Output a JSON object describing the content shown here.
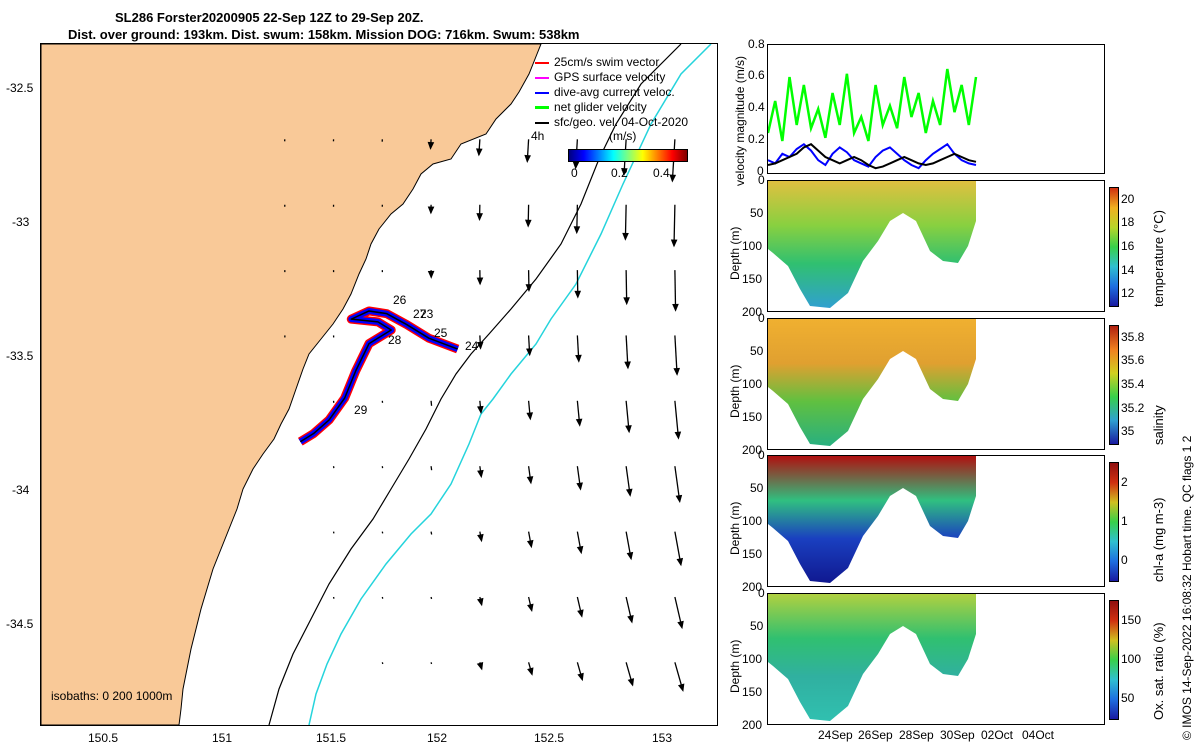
{
  "title": {
    "line1": "SL286 Forster20200905 22-Sep 12Z to 29-Sep 20Z.",
    "line2": "Dist. over ground: 193km. Dist. swum: 158km. Mission DOG: 716km. Swum: 538km"
  },
  "map": {
    "lon_ticks": [
      "150.5",
      "151",
      "151.5",
      "152",
      "152.5",
      "153"
    ],
    "lat_ticks": [
      "-32.5",
      "-33",
      "-33.5",
      "-34",
      "-34.5"
    ],
    "xlim": [
      150.2,
      153.25
    ],
    "ylim": [
      -34.85,
      -32.35
    ],
    "isobath_label": "isobaths: 0   200  1000m",
    "legend": [
      {
        "label": "25cm/s swim vector",
        "color": "#ff0000"
      },
      {
        "label": "GPS surface velocity",
        "color": "#ff00ff"
      },
      {
        "label": "dive-avg current veloc.",
        "color": "#0000ff"
      },
      {
        "label": "net glider velocity",
        "color": "#00ff00"
      },
      {
        "label": "sfc/geo. vel. 04-Oct-2020",
        "color": "#000000"
      }
    ],
    "hours_label": "4h",
    "colorbar": {
      "label": "(m/s)",
      "ticks": [
        "0",
        "0.2",
        "0.4"
      ]
    },
    "day_labels": [
      "26",
      "27",
      "23",
      "25",
      "28",
      "24",
      "29"
    ],
    "land_color": "#f9c998",
    "isobath_200_color": "#000000",
    "isobath_1000_color": "#25d4dc",
    "track_points": [
      [
        152.08,
        -33.47
      ],
      [
        151.95,
        -33.43
      ],
      [
        151.85,
        -33.38
      ],
      [
        151.76,
        -33.34
      ],
      [
        151.68,
        -33.33
      ],
      [
        151.6,
        -33.36
      ],
      [
        151.72,
        -33.37
      ],
      [
        151.78,
        -33.4
      ],
      [
        151.68,
        -33.45
      ],
      [
        151.62,
        -33.55
      ],
      [
        151.57,
        -33.65
      ],
      [
        151.5,
        -33.73
      ],
      [
        151.43,
        -33.78
      ],
      [
        151.37,
        -33.81
      ]
    ]
  },
  "velocity_panel": {
    "ylabel": "velocity magnitude (m/s)",
    "yticks": [
      "0",
      "0.2",
      "0.4",
      "0.6",
      "0.8"
    ],
    "ylim": [
      0,
      0.8
    ],
    "series": [
      {
        "color": "#00ff00",
        "values": [
          0.25,
          0.45,
          0.2,
          0.6,
          0.3,
          0.55,
          0.28,
          0.4,
          0.22,
          0.5,
          0.3,
          0.62,
          0.25,
          0.35,
          0.2,
          0.55,
          0.3,
          0.42,
          0.28,
          0.6,
          0.35,
          0.5,
          0.25,
          0.45,
          0.3,
          0.65,
          0.38,
          0.55,
          0.3,
          0.6
        ]
      },
      {
        "color": "#0000ff",
        "values": [
          0.08,
          0.06,
          0.12,
          0.1,
          0.15,
          0.18,
          0.14,
          0.08,
          0.05,
          0.12,
          0.16,
          0.13,
          0.08,
          0.06,
          0.04,
          0.1,
          0.14,
          0.16,
          0.12,
          0.08,
          0.05,
          0.03,
          0.08,
          0.12,
          0.15,
          0.18,
          0.12,
          0.08,
          0.06,
          0.05
        ]
      },
      {
        "color": "#000000",
        "values": [
          0.05,
          0.06,
          0.08,
          0.1,
          0.12,
          0.16,
          0.18,
          0.14,
          0.1,
          0.08,
          0.06,
          0.08,
          0.1,
          0.08,
          0.05,
          0.03,
          0.04,
          0.06,
          0.08,
          0.1,
          0.08,
          0.06,
          0.05,
          0.06,
          0.08,
          0.1,
          0.12,
          0.1,
          0.08,
          0.07
        ]
      }
    ]
  },
  "sections": [
    {
      "ylabel": "Depth (m)",
      "cb_label": "temperature (°C)",
      "cb_ticks": [
        "12",
        "14",
        "16",
        "18",
        "20"
      ],
      "clim": [
        11.5,
        21.5
      ]
    },
    {
      "ylabel": "Depth (m)",
      "cb_label": "salinity",
      "cb_ticks": [
        "35",
        "35.2",
        "35.4",
        "35.6",
        "35.8"
      ],
      "clim": [
        34.95,
        35.8
      ]
    },
    {
      "ylabel": "Depth (m)",
      "cb_label": "chl-a (mg m-3)",
      "cb_ticks": [
        "0",
        "1",
        "2"
      ],
      "clim": [
        0,
        2
      ]
    },
    {
      "ylabel": "Depth (m)",
      "cb_label": "Ox. sat. ratio (%)",
      "cb_ticks": [
        "50",
        "100",
        "150"
      ],
      "clim": [
        25,
        175
      ]
    }
  ],
  "depth_ticks": [
    "0",
    "50",
    "100",
    "150",
    "200"
  ],
  "time_ticks": [
    "24Sep",
    "26Sep",
    "28Sep",
    "30Sep",
    "02Oct",
    "04Oct"
  ],
  "side_note": "© IMOS 14-Sep-2022 16:08:32 Hobart time. QC flags 1  2"
}
